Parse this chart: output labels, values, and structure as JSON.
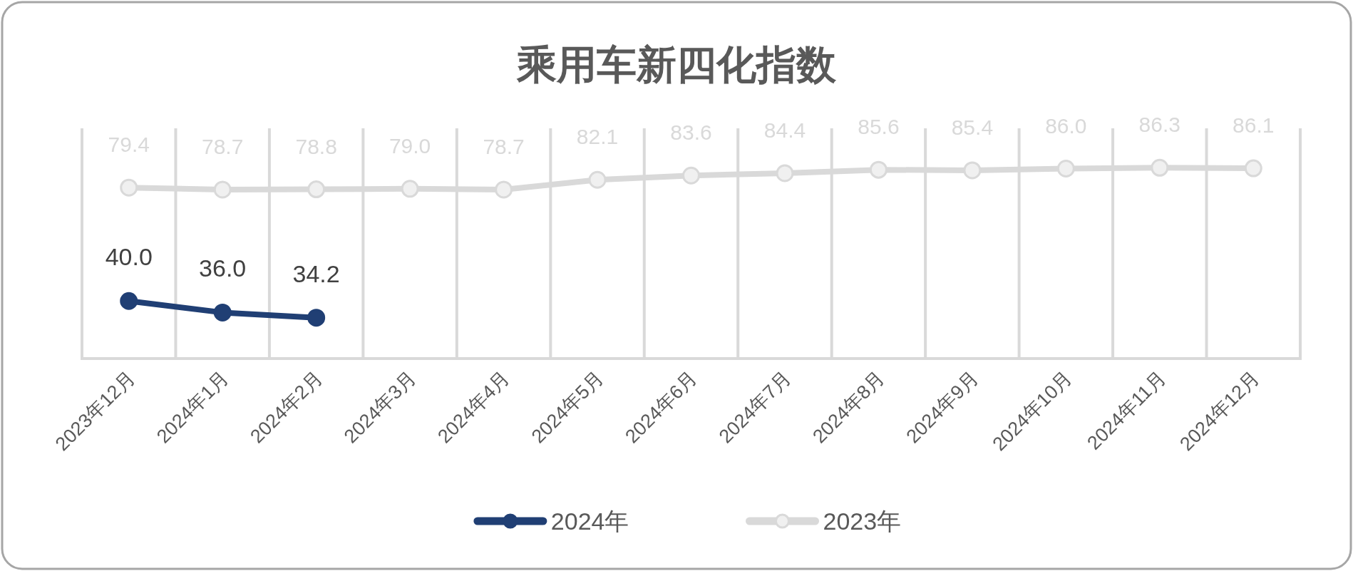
{
  "chart_data": {
    "type": "line",
    "title": "乘用车新四化指数",
    "categories": [
      "2023年12月",
      "2024年1月",
      "2024年2月",
      "2024年3月",
      "2024年4月",
      "2024年5月",
      "2024年6月",
      "2024年7月",
      "2024年8月",
      "2024年9月",
      "2024年10月",
      "2024年11月",
      "2024年12月"
    ],
    "series": [
      {
        "name": "2024年",
        "color": "#203f74",
        "values": [
          40.0,
          36.0,
          34.2,
          null,
          null,
          null,
          null,
          null,
          null,
          null,
          null,
          null,
          null
        ],
        "value_labels": [
          "40.0",
          "36.0",
          "34.2",
          null,
          null,
          null,
          null,
          null,
          null,
          null,
          null,
          null,
          null
        ]
      },
      {
        "name": "2023年",
        "color": "#d9d9d9",
        "values": [
          79.4,
          78.7,
          78.8,
          79.0,
          78.7,
          82.1,
          83.6,
          84.4,
          85.6,
          85.4,
          86.0,
          86.3,
          86.1
        ],
        "value_labels": [
          "79.4",
          "78.7",
          "78.8",
          "79.0",
          "78.7",
          "82.1",
          "83.6",
          "84.4",
          "85.6",
          "85.4",
          "86.0",
          "86.3",
          "86.1"
        ]
      }
    ],
    "ylim": [
      20,
      100
    ],
    "tick_labels": "x",
    "grid": "x",
    "legend": "bottom",
    "marker": "circle"
  }
}
